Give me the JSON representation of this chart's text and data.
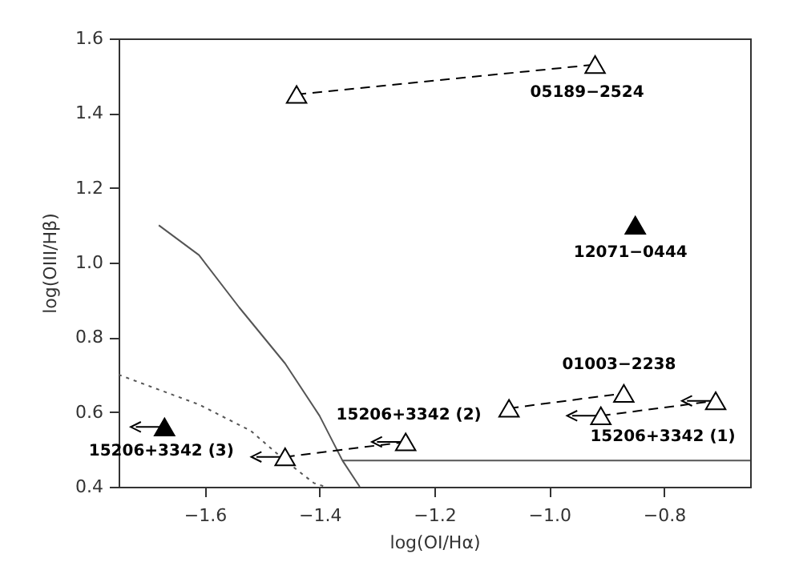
{
  "chart_data": {
    "type": "scatter",
    "xlabel": "log(OI/Hα)",
    "ylabel": "log(OIII/Hβ)",
    "xlim": [
      -1.75,
      -0.65
    ],
    "ylim": [
      0.4,
      1.6
    ],
    "xticks": [
      {
        "value": -1.6,
        "label": "−1.6"
      },
      {
        "value": -1.4,
        "label": "−1.4"
      },
      {
        "value": -1.2,
        "label": "−1.2"
      },
      {
        "value": -1.0,
        "label": "−1.0"
      },
      {
        "value": -0.8,
        "label": "−0.8"
      }
    ],
    "yticks": [
      0.4,
      0.6,
      0.8,
      {
        "value": 1.0,
        "label": "1.0"
      },
      1.2,
      1.4,
      1.6
    ],
    "grid": false,
    "series": [
      {
        "type": "line",
        "color": "#555555",
        "line_style": "solid",
        "marker": "none",
        "x": [
          -1.68,
          -1.61,
          -1.54,
          -1.46,
          -1.4,
          -1.36,
          -1.33
        ],
        "values": [
          1.1,
          1.02,
          0.88,
          0.73,
          0.59,
          0.47,
          0.4
        ]
      },
      {
        "type": "line",
        "color": "#555555",
        "line_style": "dotted",
        "marker": "none",
        "x": [
          -1.75,
          -1.61,
          -1.52,
          -1.46,
          -1.41,
          -1.39
        ],
        "values": [
          0.7,
          0.62,
          0.55,
          0.47,
          0.41,
          0.4
        ]
      },
      {
        "type": "line",
        "color": "#555555",
        "line_style": "solid",
        "marker": "none",
        "x": [
          -1.36,
          -0.65
        ],
        "values": [
          0.47,
          0.47
        ]
      },
      {
        "type": "line",
        "color": "#000000",
        "line_style": "dashed",
        "marker": "triangle",
        "x": [
          -1.44,
          -0.92
        ],
        "values": [
          1.45,
          1.53
        ]
      },
      {
        "type": "line",
        "color": "#000000",
        "line_style": "dashed",
        "marker": "triangle",
        "x": [
          -1.46,
          -1.25
        ],
        "values": [
          0.48,
          0.52
        ],
        "xerrors": [
          [
            -1.51,
            -1.46
          ],
          [
            -1.3,
            -1.25
          ]
        ]
      },
      {
        "type": "line",
        "color": "#000000",
        "line_style": "dashed",
        "marker": "triangle",
        "x": [
          -1.07,
          -0.87
        ],
        "values": [
          0.61,
          0.65
        ]
      },
      {
        "type": "line",
        "color": "#000000",
        "line_style": "dashed",
        "marker": "triangle",
        "x": [
          -0.91,
          -0.71
        ],
        "values": [
          0.59,
          0.63
        ],
        "xerrors": [
          [
            -0.96,
            -0.91
          ],
          [
            -0.76,
            -0.71
          ]
        ]
      },
      {
        "color": "#000000",
        "marker": "triangle",
        "x": [
          -1.67,
          -0.85
        ],
        "values": [
          0.56,
          1.1
        ],
        "xerrors": [
          [
            -1.72,
            -1.67
          ],
          null
        ]
      }
    ],
    "annotations": [
      {
        "text": "05189−2524",
        "x": -0.92,
        "y": 1.53
      },
      {
        "text": "12071−0444",
        "x": -0.85,
        "y": 1.1
      },
      {
        "text": "01003−2238",
        "x": -0.87,
        "y": 0.65
      },
      {
        "text": "15206+3342 (1)",
        "x": -0.71,
        "y": 0.63
      },
      {
        "text": "15206+3342 (2)",
        "x": -1.25,
        "y": 0.52
      },
      {
        "text": "15206+3342 (3)",
        "x": -1.67,
        "y": 0.56
      }
    ]
  }
}
